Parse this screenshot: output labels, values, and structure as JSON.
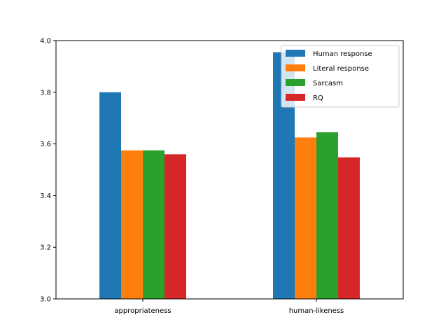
{
  "chart_data": {
    "type": "bar",
    "categories": [
      "appropriateness",
      "human-likeness"
    ],
    "series": [
      {
        "name": "Human response",
        "values": [
          3.8,
          3.955
        ],
        "color": "#1f77b4"
      },
      {
        "name": "Literal response",
        "values": [
          3.575,
          3.625
        ],
        "color": "#ff7f0e"
      },
      {
        "name": "Sarcasm",
        "values": [
          3.575,
          3.645
        ],
        "color": "#2ca02c"
      },
      {
        "name": "RQ",
        "values": [
          3.56,
          3.548
        ],
        "color": "#d62728"
      }
    ],
    "ylim": [
      3.0,
      4.0
    ],
    "yticks": [
      "3.0",
      "3.2",
      "3.4",
      "3.6",
      "3.8",
      "4.0"
    ],
    "grid": false,
    "legend_position": "top-right"
  }
}
